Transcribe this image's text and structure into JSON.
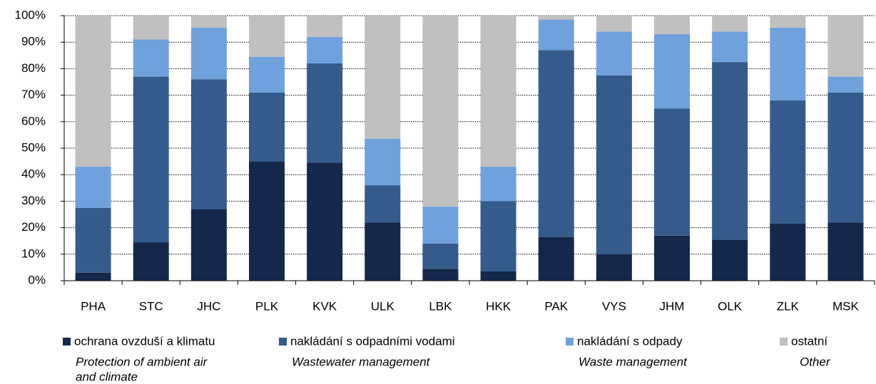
{
  "chart_data": {
    "type": "stacked_bar_100",
    "categories": [
      "PHA",
      "STC",
      "JHC",
      "PLK",
      "KVK",
      "ULK",
      "LBK",
      "HKK",
      "PAK",
      "VYS",
      "JHM",
      "OLK",
      "ZLK",
      "MSK"
    ],
    "series": [
      {
        "name": "ochrana ovzduší a klimatu",
        "name_en": [
          "Protection of ambient air",
          "and  climate"
        ],
        "color": "#14284b",
        "values": [
          3,
          14.5,
          27,
          45,
          44.5,
          22,
          4.5,
          3.5,
          16.5,
          10,
          17,
          15.5,
          21.5,
          22
        ]
      },
      {
        "name": "nakládání s odpadními vodami",
        "name_en": [
          "Wastewater management"
        ],
        "color": "#345b8b",
        "values": [
          24.5,
          62.5,
          49,
          26,
          37.5,
          14,
          9.5,
          26.5,
          70.5,
          67.5,
          48,
          67,
          46.5,
          49
        ]
      },
      {
        "name": "nakládání s odpady",
        "name_en": [
          "Waste management"
        ],
        "color": "#6fa1dd",
        "values": [
          15.5,
          14,
          19.5,
          13.5,
          10,
          17.5,
          14,
          13,
          11.5,
          16.5,
          28,
          11.5,
          27.5,
          6
        ]
      },
      {
        "name": "ostatní",
        "name_en": [
          "Other"
        ],
        "color": "#c0c0c0",
        "values": [
          57,
          9,
          4.5,
          15.5,
          8,
          46.5,
          72,
          57,
          1.5,
          6,
          7,
          6,
          4.5,
          23
        ]
      }
    ],
    "ylim": [
      0,
      100
    ],
    "yticks": [
      {
        "value": 0,
        "label": "0%"
      },
      {
        "value": 10,
        "label": "10%"
      },
      {
        "value": 20,
        "label": "20%"
      },
      {
        "value": 30,
        "label": "30%"
      },
      {
        "value": 40,
        "label": "40%"
      },
      {
        "value": 50,
        "label": "50%"
      },
      {
        "value": 60,
        "label": "60%"
      },
      {
        "value": 70,
        "label": "70%"
      },
      {
        "value": 80,
        "label": "80%"
      },
      {
        "value": 90,
        "label": "90%"
      },
      {
        "value": 100,
        "label": "100%"
      }
    ],
    "grid": true
  }
}
